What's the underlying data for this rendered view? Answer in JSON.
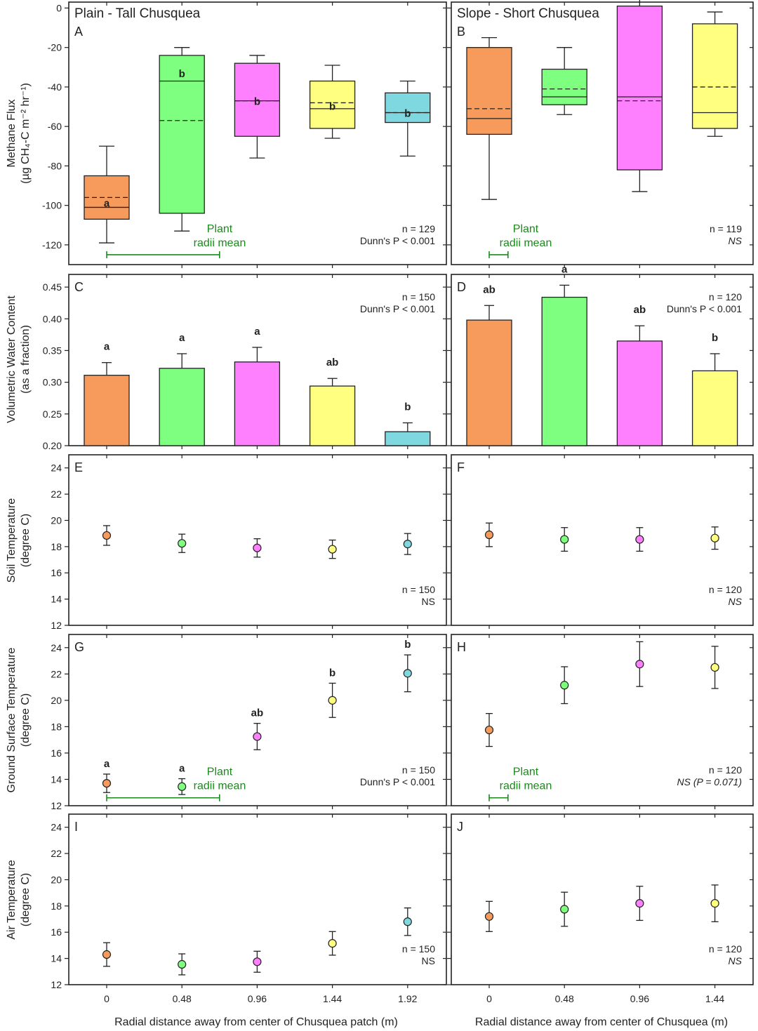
{
  "chart_data": [
    {
      "id": "A",
      "type": "box",
      "letter": "A",
      "title": "Plain - Tall Chusquea",
      "ylabel": "Methane Flux",
      "ylabel2": "(µg CH₄-C m⁻² hr⁻¹)",
      "ylim": [
        -130,
        3
      ],
      "yticks": [
        0,
        -20,
        -40,
        -60,
        -80,
        -100,
        -120
      ],
      "categories": [
        "0",
        "0.48",
        "0.96",
        "1.44",
        "1.92"
      ],
      "boxes": [
        {
          "category": "0",
          "color": "#F79B5C",
          "q1": -107,
          "median": -101,
          "mean": -96,
          "q3": -85,
          "whisker_low": -119,
          "whisker_high": -70,
          "letter": "a"
        },
        {
          "category": "0.48",
          "color": "#7FFF7F",
          "q1": -104,
          "median": -37,
          "mean": -57,
          "q3": -24,
          "whisker_low": -113,
          "whisker_high": -20,
          "letter": "b"
        },
        {
          "category": "0.96",
          "color": "#FF80FF",
          "q1": -65,
          "median": -47,
          "mean": -47,
          "q3": -28,
          "whisker_low": -76,
          "whisker_high": -24,
          "letter": "b"
        },
        {
          "category": "1.44",
          "color": "#FFFF80",
          "q1": -61,
          "median": -51,
          "mean": -48,
          "q3": -37,
          "whisker_low": -66,
          "whisker_high": -29,
          "letter": "b"
        },
        {
          "category": "1.92",
          "color": "#7FD7DF",
          "q1": -58,
          "median": -53,
          "mean": -53,
          "q3": -43,
          "whisker_low": -75,
          "whisker_high": -37,
          "letter": "b"
        }
      ],
      "stats": [
        "n = 129",
        "Dunn's P < 0.001"
      ],
      "annotation": {
        "lines": [
          "Plant",
          "radii mean"
        ],
        "range": [
          0,
          0.72
        ],
        "y": -125
      }
    },
    {
      "id": "B",
      "type": "box",
      "letter": "B",
      "title": "Slope - Short Chusquea",
      "ylim": [
        -130,
        3
      ],
      "yticks": [
        0,
        -20,
        -40,
        -60,
        -80,
        -100,
        -120
      ],
      "categories": [
        "0",
        "0.48",
        "0.96",
        "1.44"
      ],
      "boxes": [
        {
          "category": "0",
          "color": "#F79B5C",
          "q1": -64,
          "median": -56,
          "mean": -51,
          "q3": -20,
          "whisker_low": -97,
          "whisker_high": -15,
          "letter": ""
        },
        {
          "category": "0.48",
          "color": "#7FFF7F",
          "q1": -49,
          "median": -45,
          "mean": -41,
          "q3": -31,
          "whisker_low": -54,
          "whisker_high": -20,
          "letter": ""
        },
        {
          "category": "0.96",
          "color": "#FF80FF",
          "q1": -82,
          "median": -45,
          "mean": -47,
          "q3": 1,
          "whisker_low": -93,
          "whisker_high": 7,
          "letter": ""
        },
        {
          "category": "1.44",
          "color": "#FFFF80",
          "q1": -61,
          "median": -53,
          "mean": -40,
          "q3": -8,
          "whisker_low": -65,
          "whisker_high": -2,
          "letter": ""
        }
      ],
      "stats": [
        "n = 119",
        "NS"
      ],
      "annotation": {
        "lines": [
          "Plant",
          "radii mean"
        ],
        "range": [
          0,
          0.12
        ],
        "y": -125
      }
    },
    {
      "id": "C",
      "type": "bar",
      "letter": "C",
      "ylabel": "Volumetric Water Content",
      "ylabel2": "(as a fraction)",
      "ylim": [
        0.2,
        0.47
      ],
      "yticks": [
        0.2,
        0.25,
        0.3,
        0.35,
        0.4,
        0.45
      ],
      "categories": [
        "0",
        "0.48",
        "0.96",
        "1.44",
        "1.92"
      ],
      "values": [
        0.311,
        0.322,
        0.332,
        0.294,
        0.222
      ],
      "errors": [
        0.02,
        0.023,
        0.023,
        0.012,
        0.014
      ],
      "colors": [
        "#F79B5C",
        "#7FFF7F",
        "#FF80FF",
        "#FFFF80",
        "#7FD7DF"
      ],
      "letters": [
        "a",
        "a",
        "a",
        "ab",
        "b"
      ],
      "stats": [
        "n = 150",
        "Dunn's P < 0.001"
      ]
    },
    {
      "id": "D",
      "type": "bar",
      "letter": "D",
      "ylim": [
        0.2,
        0.47
      ],
      "yticks": [
        0.2,
        0.25,
        0.3,
        0.35,
        0.4,
        0.45
      ],
      "categories": [
        "0",
        "0.48",
        "0.96",
        "1.44"
      ],
      "values": [
        0.398,
        0.434,
        0.365,
        0.318
      ],
      "errors": [
        0.023,
        0.019,
        0.024,
        0.027
      ],
      "colors": [
        "#F79B5C",
        "#7FFF7F",
        "#FF80FF",
        "#FFFF80"
      ],
      "letters": [
        "ab",
        "a",
        "ab",
        "b"
      ],
      "stats": [
        "n = 120",
        "Dunn's P < 0.001"
      ]
    },
    {
      "id": "E",
      "type": "scatter",
      "letter": "E",
      "ylabel": "Soil Temperature",
      "ylabel2": "(degree C)",
      "ylim": [
        12,
        25
      ],
      "yticks": [
        12,
        14,
        16,
        18,
        20,
        22,
        24
      ],
      "categories": [
        "0",
        "0.48",
        "0.96",
        "1.44",
        "1.92"
      ],
      "values": [
        18.85,
        18.25,
        17.9,
        17.8,
        18.2
      ],
      "errors": [
        0.75,
        0.7,
        0.7,
        0.7,
        0.8
      ],
      "colors": [
        "#F79B5C",
        "#7FFF7F",
        "#FF80FF",
        "#FFFF80",
        "#7FD7DF"
      ],
      "letters": [
        "",
        "",
        "",
        "",
        ""
      ],
      "stats": [
        "n = 150",
        "NS"
      ]
    },
    {
      "id": "F",
      "type": "scatter",
      "letter": "F",
      "ylim": [
        12,
        25
      ],
      "yticks": [
        12,
        14,
        16,
        18,
        20,
        22,
        24
      ],
      "categories": [
        "0",
        "0.48",
        "0.96",
        "1.44"
      ],
      "values": [
        18.9,
        18.55,
        18.55,
        18.65
      ],
      "errors": [
        0.9,
        0.9,
        0.9,
        0.85
      ],
      "colors": [
        "#F79B5C",
        "#7FFF7F",
        "#FF80FF",
        "#FFFF80"
      ],
      "letters": [
        "",
        "",
        "",
        ""
      ],
      "stats": [
        "n = 120",
        "NS"
      ]
    },
    {
      "id": "G",
      "type": "scatter",
      "letter": "G",
      "ylabel": "Ground Surface Temperature",
      "ylabel2": "(degree C)",
      "ylim": [
        12,
        25
      ],
      "yticks": [
        12,
        14,
        16,
        18,
        20,
        22,
        24
      ],
      "categories": [
        "0",
        "0.48",
        "0.96",
        "1.44",
        "1.92"
      ],
      "values": [
        13.7,
        13.45,
        17.25,
        20.0,
        22.05
      ],
      "errors": [
        0.7,
        0.6,
        1.0,
        1.3,
        1.4
      ],
      "colors": [
        "#F79B5C",
        "#7FFF7F",
        "#FF80FF",
        "#FFFF80",
        "#7FD7DF"
      ],
      "letters": [
        "a",
        "a",
        "ab",
        "b",
        "b"
      ],
      "stats": [
        "n = 150",
        "Dunn's P < 0.001"
      ],
      "annotation": {
        "lines": [
          "Plant",
          "radii mean"
        ],
        "range": [
          0,
          0.72
        ],
        "y": 12.6
      }
    },
    {
      "id": "H",
      "type": "scatter",
      "letter": "H",
      "ylim": [
        12,
        25
      ],
      "yticks": [
        12,
        14,
        16,
        18,
        20,
        22,
        24
      ],
      "categories": [
        "0",
        "0.48",
        "0.96",
        "1.44"
      ],
      "values": [
        17.75,
        21.15,
        22.75,
        22.5
      ],
      "errors": [
        1.25,
        1.4,
        1.7,
        1.6
      ],
      "colors": [
        "#F79B5C",
        "#7FFF7F",
        "#FF80FF",
        "#FFFF80"
      ],
      "letters": [
        "",
        "",
        "",
        ""
      ],
      "stats": [
        "n = 120",
        "NS (P = 0.071)"
      ],
      "annotation": {
        "lines": [
          "Plant",
          "radii mean"
        ],
        "range": [
          0,
          0.12
        ],
        "y": 12.6
      }
    },
    {
      "id": "I",
      "type": "scatter",
      "letter": "I",
      "ylabel": "Air Temperature",
      "ylabel2": "(degree C)",
      "ylim": [
        12,
        25
      ],
      "yticks": [
        12,
        14,
        16,
        18,
        20,
        22,
        24
      ],
      "categories": [
        "0",
        "0.48",
        "0.96",
        "1.44",
        "1.92"
      ],
      "values": [
        14.3,
        13.55,
        13.75,
        15.15,
        16.8
      ],
      "errors": [
        0.9,
        0.8,
        0.8,
        0.9,
        1.05
      ],
      "colors": [
        "#F79B5C",
        "#7FFF7F",
        "#FF80FF",
        "#FFFF80",
        "#7FD7DF"
      ],
      "letters": [
        "",
        "",
        "",
        "",
        ""
      ],
      "stats": [
        "n = 150",
        "NS"
      ],
      "xlabel": "Radial distance away from center of Chusquea patch (m)",
      "xticklabels": [
        "0",
        "0.48",
        "0.96",
        "1.44",
        "1.92"
      ]
    },
    {
      "id": "J",
      "type": "scatter",
      "letter": "J",
      "ylim": [
        12,
        25
      ],
      "yticks": [
        12,
        14,
        16,
        18,
        20,
        22,
        24
      ],
      "categories": [
        "0",
        "0.48",
        "0.96",
        "1.44"
      ],
      "values": [
        17.2,
        17.75,
        18.2,
        18.2
      ],
      "errors": [
        1.15,
        1.3,
        1.3,
        1.4
      ],
      "colors": [
        "#F79B5C",
        "#7FFF7F",
        "#FF80FF",
        "#FFFF80"
      ],
      "letters": [
        "",
        "",
        "",
        ""
      ],
      "stats": [
        "n = 120",
        "NS"
      ],
      "xlabel": "Radial distance away from center of Chusquea (m)",
      "xticklabels": [
        "0",
        "0.48",
        "0.96",
        "1.44"
      ]
    }
  ]
}
